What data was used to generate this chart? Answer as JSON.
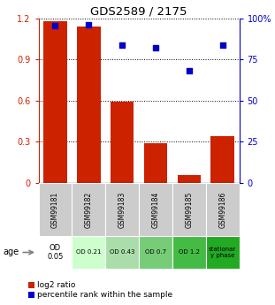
{
  "title": "GDS2589 / 2175",
  "categories": [
    "GSM99181",
    "GSM99182",
    "GSM99183",
    "GSM99184",
    "GSM99185",
    "GSM99186"
  ],
  "log2_ratio": [
    1.18,
    1.14,
    0.59,
    0.29,
    0.06,
    0.34
  ],
  "percentile_rank": [
    95.5,
    96.0,
    83.5,
    82.0,
    68.0,
    84.0
  ],
  "bar_color": "#cc2200",
  "dot_color": "#0000cc",
  "ylim_left": [
    0,
    1.2
  ],
  "ylim_right": [
    0,
    100
  ],
  "yticks_left": [
    0,
    0.3,
    0.6,
    0.9,
    1.2
  ],
  "ytick_labels_left": [
    "0",
    "0.3",
    "0.6",
    "0.9",
    "1.2"
  ],
  "yticks_right": [
    0,
    25,
    50,
    75,
    100
  ],
  "ytick_labels_right": [
    "0",
    "25",
    "50",
    "75",
    "100%"
  ],
  "age_labels": [
    "OD\n0.05",
    "OD 0.21",
    "OD 0.43",
    "OD 0.7",
    "OD 1.2",
    "stationar\ny phase"
  ],
  "age_bg_colors": [
    "#ffffff",
    "#ccffcc",
    "#aaddaa",
    "#77cc77",
    "#44bb44",
    "#22aa22"
  ],
  "gsm_bg_color": "#cccccc",
  "legend_bar_label": "log2 ratio",
  "legend_dot_label": "percentile rank within the sample"
}
